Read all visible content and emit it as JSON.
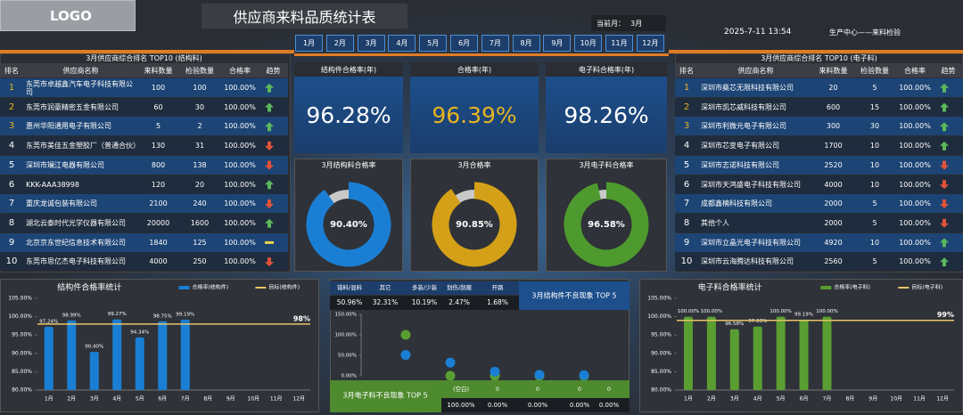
{
  "header": {
    "logo": "LOGO",
    "title": "供应商来料品质统计表",
    "current_month_label": "当前月：",
    "current_month": "3月",
    "datetime": "2025-7-11 13:54",
    "department": "生产中心——来料检验",
    "months": [
      "1月",
      "2月",
      "3月",
      "4月",
      "5月",
      "6月",
      "7月",
      "8月",
      "9月",
      "10月",
      "11月",
      "12月"
    ]
  },
  "tables": [
    {
      "title": "3月供应商综合排名 TOP10 (结构料)",
      "columns": [
        "排名",
        "供应商名称",
        "来料数量",
        "检验数量",
        "合格率",
        "趋势"
      ],
      "rows": [
        [
          1,
          "东莞市卓越鑫汽车电子科技有限公司",
          100,
          100,
          "100.00%"
        ],
        [
          2,
          "东莞市润豪精密五金有限公司",
          60,
          30,
          "100.00%"
        ],
        [
          3,
          "惠州华阳通用电子有限公司",
          5,
          2,
          "100.00%"
        ],
        [
          4,
          "东莞市美佳五金塑胶厂（普通合伙）",
          130,
          31,
          "100.00%"
        ],
        [
          5,
          "深圳市斓江电器有限公司",
          800,
          138,
          "100.00%"
        ],
        [
          6,
          "KKK-AAA38998",
          120,
          20,
          "100.00%"
        ],
        [
          7,
          "重庆龙诚包装有限公司",
          2100,
          240,
          "100.00%"
        ],
        [
          8,
          "湖北云泰时代光学仪器有限公司",
          20000,
          1600,
          "100.00%"
        ],
        [
          9,
          "北京京东世纪信息技术有限公司",
          1840,
          125,
          "100.00%"
        ],
        [
          10,
          "东莞市思亿杰电子科技有限公司",
          4000,
          250,
          "100.00%"
        ]
      ]
    },
    {
      "title": "3月供应商综合排名 TOP10 (电子料)",
      "columns": [
        "排名",
        "供应商名称",
        "来料数量",
        "检验数量",
        "合格率",
        "趋势"
      ],
      "rows": [
        [
          1,
          "深圳市燊芯无限科技有限公司",
          20,
          5,
          "100.00%"
        ],
        [
          2,
          "深圳市凯芯威科技有限公司",
          600,
          15,
          "100.00%"
        ],
        [
          3,
          "深圳市利微元电子有限公司",
          300,
          30,
          "100.00%"
        ],
        [
          4,
          "深圳市芯变电子有限公司",
          1700,
          10,
          "100.00%"
        ],
        [
          5,
          "深圳市志诺科技有限公司",
          2520,
          10,
          "100.00%"
        ],
        [
          6,
          "深圳市天鸿盛电子科技有限公司",
          4000,
          10,
          "100.00%"
        ],
        [
          7,
          "成都鑫楠科技有限公司",
          2000,
          5,
          "100.00%"
        ],
        [
          8,
          "其他个人",
          2000,
          5,
          "100.00%"
        ],
        [
          9,
          "深圳市立晶光电子科技有限公司",
          4920,
          10,
          "100.00%"
        ],
        [
          10,
          "深圳市云海腾达科技有限公司",
          2560,
          5,
          "100.00%"
        ]
      ]
    }
  ],
  "kpis": [
    {
      "label": "结构件合格率(年)",
      "value": "96.28%",
      "color": "#ffffff"
    },
    {
      "label": "合格率(年)",
      "value": "96.39%",
      "color": "#e6b422"
    },
    {
      "label": "电子料合格率(年)",
      "value": "98.26%",
      "color": "#ffffff"
    }
  ],
  "chart_data": [
    {
      "type": "donut",
      "title": "3月结构料合格率",
      "values": [
        90.4
      ],
      "value_labels": [
        "90.40%"
      ],
      "color": "#1a7fd4"
    },
    {
      "type": "donut",
      "title": "3月合格率",
      "values": [
        90.85
      ],
      "value_labels": [
        "90.85%"
      ],
      "color": "#d4a017"
    },
    {
      "type": "donut",
      "title": "3月电子料合格率",
      "values": [
        96.58
      ],
      "value_labels": [
        "96.58%"
      ],
      "color": "#4e9a2e"
    },
    {
      "type": "bar",
      "title": "结构件合格率统计",
      "categories": [
        "1月",
        "2月",
        "3月",
        "4月",
        "5月",
        "6月",
        "7月",
        "8月",
        "9月",
        "10月",
        "11月",
        "12月"
      ],
      "series": [
        {
          "name": "合格率(结构件)",
          "color": "#1a7fd4",
          "values": [
            97.24,
            98.99,
            90.4,
            99.27,
            94.34,
            98.75,
            99.19,
            null,
            null,
            null,
            null,
            null
          ],
          "value_labels": [
            "97.24%",
            "98.99%",
            "90.40%",
            "99.27%",
            "94.34%",
            "98.75%",
            "99.19%",
            null,
            null,
            null,
            null,
            null
          ]
        }
      ],
      "target": {
        "name": "目标(结构件)",
        "color": "#e8c468",
        "value": 98,
        "value_label": "98%"
      },
      "ylim": [
        80,
        105
      ],
      "yticks": [
        {
          "value": 80,
          "label": "80.00%"
        },
        {
          "value": 85,
          "label": "85.00%"
        },
        {
          "value": 90,
          "label": "90.00%"
        },
        {
          "value": 95,
          "label": "95.00%"
        },
        {
          "value": 100,
          "label": "100.00%"
        },
        {
          "value": 105,
          "label": "105.00%"
        }
      ]
    },
    {
      "type": "bar",
      "title": "电子料合格率统计",
      "categories": [
        "1月",
        "2月",
        "3月",
        "4月",
        "5月",
        "6月",
        "7月",
        "8月",
        "9月",
        "10月",
        "11月",
        "12月"
      ],
      "series": [
        {
          "name": "合格率(电子料)",
          "color": "#5a9e32",
          "values": [
            100,
            100,
            96.58,
            97.33,
            100,
            99.19,
            100,
            null,
            null,
            null,
            null,
            null
          ],
          "value_labels": [
            "100.00%",
            "100.00%",
            "96.58%",
            "97.33%",
            "100.00%",
            "99.19%",
            "100.00%",
            null,
            null,
            null,
            null,
            null
          ]
        }
      ],
      "target": {
        "name": "目标(电子料)",
        "color": "#e8c468",
        "value": 99,
        "value_label": "99%"
      },
      "ylim": [
        80,
        105
      ],
      "yticks": [
        {
          "value": 80,
          "label": "80.00%"
        },
        {
          "value": 85,
          "label": "85.00%"
        },
        {
          "value": 90,
          "label": "90.00%"
        },
        {
          "value": 95,
          "label": "95.00%"
        },
        {
          "value": 100,
          "label": "100.00%"
        },
        {
          "value": 105,
          "label": "105.00%"
        }
      ]
    },
    {
      "type": "scatter",
      "series": [
        {
          "title": "3月结构件不良现象 TOP 5",
          "color": "#1a7fd4",
          "categories": [
            "错料/混料",
            "其它",
            "多装/少装",
            "划伤/刮痕",
            "开路"
          ],
          "values": [
            50.96,
            32.31,
            10.19,
            2.47,
            1.68
          ],
          "value_labels": [
            "50.96%",
            "32.31%",
            "10.19%",
            "2.47%",
            "1.68%"
          ]
        },
        {
          "title": "3月电子料不良现象 TOP 5",
          "color": "#5a9e32",
          "categories": [
            "(空白)",
            "0",
            "0",
            "0",
            "0"
          ],
          "values": [
            100,
            0,
            0,
            0,
            0
          ],
          "value_labels": [
            "100.00%",
            "0.00%",
            "0.00%",
            "0.00%",
            "0.00%"
          ]
        }
      ],
      "ylim": [
        0,
        150
      ],
      "yticks": [
        {
          "value": 0,
          "label": "0.00%"
        },
        {
          "value": 50,
          "label": "50.00%"
        },
        {
          "value": 100,
          "label": "100.00%"
        },
        {
          "value": 150,
          "label": "150.00%"
        }
      ]
    }
  ]
}
